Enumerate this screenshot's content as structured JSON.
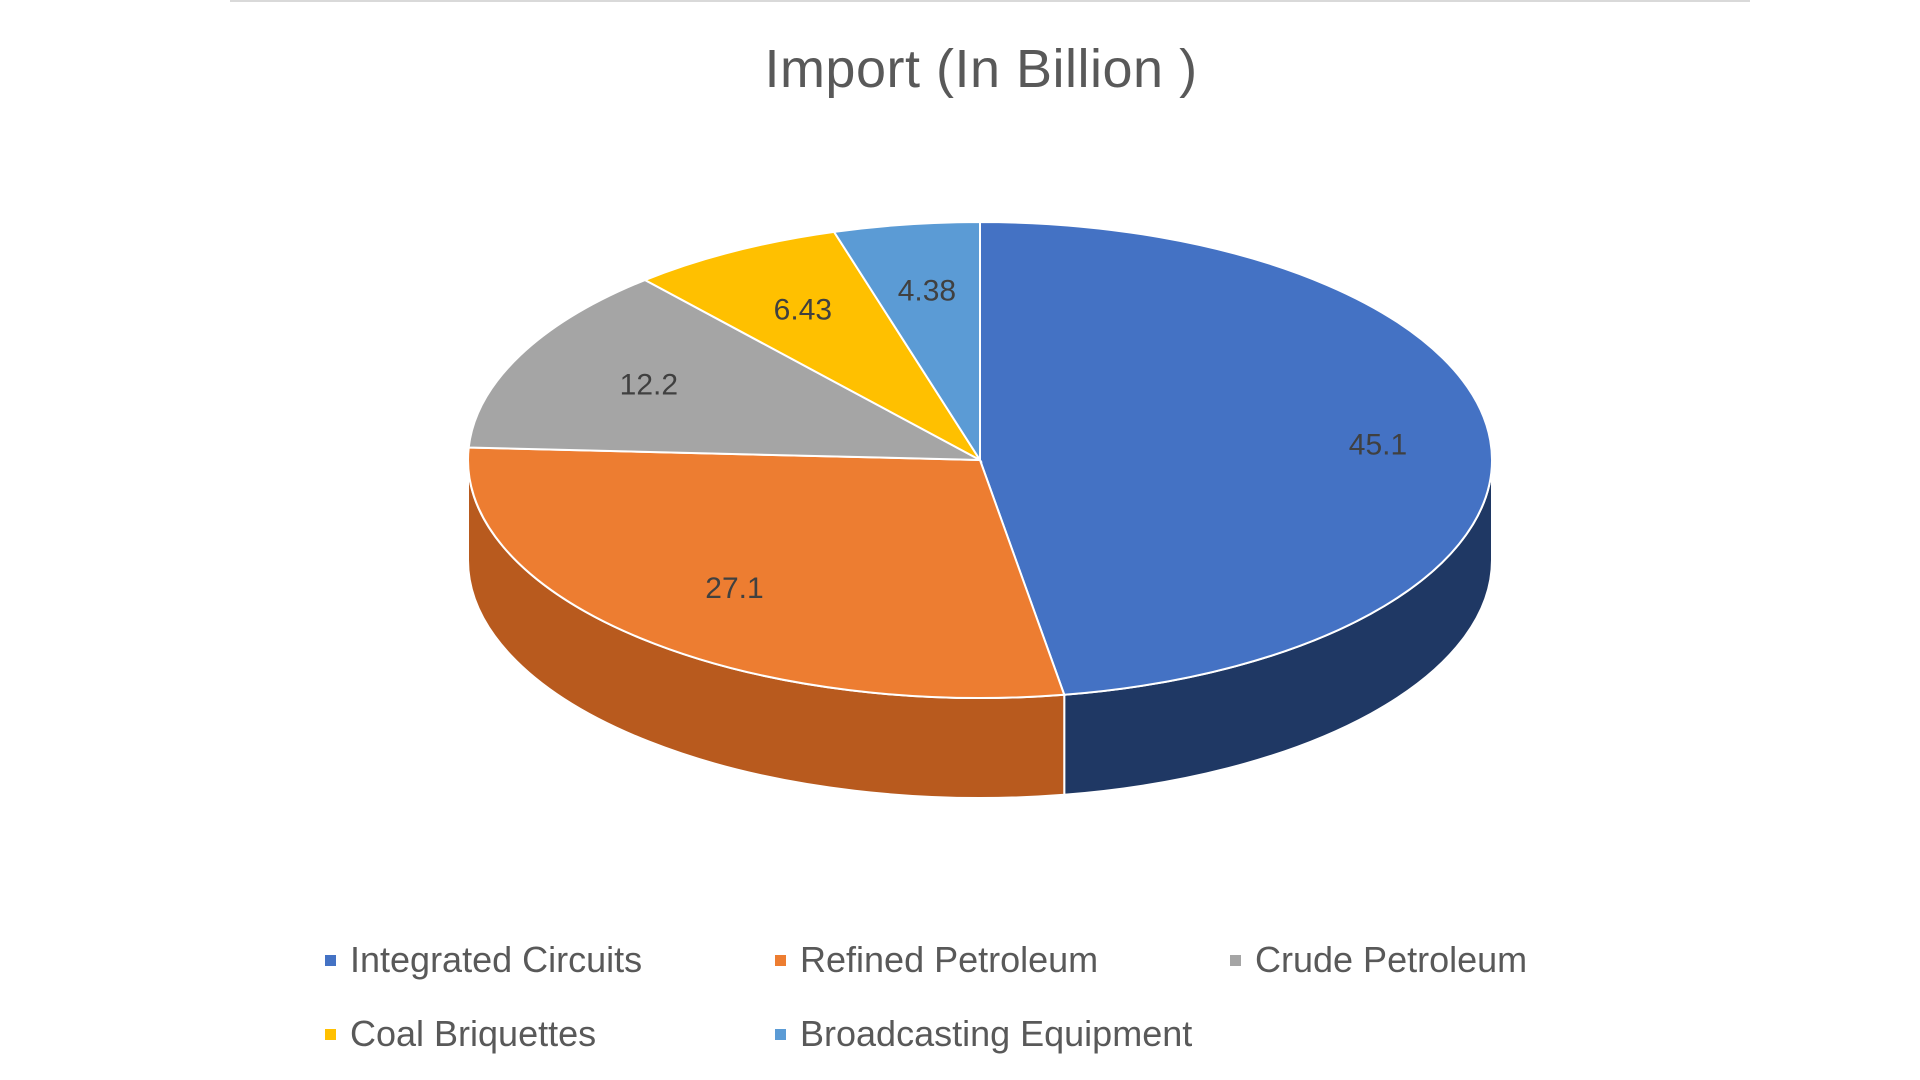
{
  "chart_data": {
    "type": "pie",
    "style": "3d",
    "title": "Import (In Billion )",
    "categories": [
      "Integrated Circuits",
      "Refined Petroleum",
      "Crude Petroleum",
      "Coal Briquettes",
      "Broadcasting Equipment"
    ],
    "values": [
      45.1,
      27.1,
      12.2,
      6.43,
      4.38
    ],
    "value_labels": [
      "45.1",
      "27.1",
      "12.2",
      "6.43",
      "4.38"
    ],
    "colors": [
      "#4472c4",
      "#ed7d31",
      "#a5a5a5",
      "#ffc000",
      "#5b9bd5"
    ],
    "side_colors": [
      "#1f3864",
      "#b85a1e",
      "#7f7f7f",
      "#bf9000",
      "#2e75b6"
    ],
    "legend_position": "bottom"
  }
}
